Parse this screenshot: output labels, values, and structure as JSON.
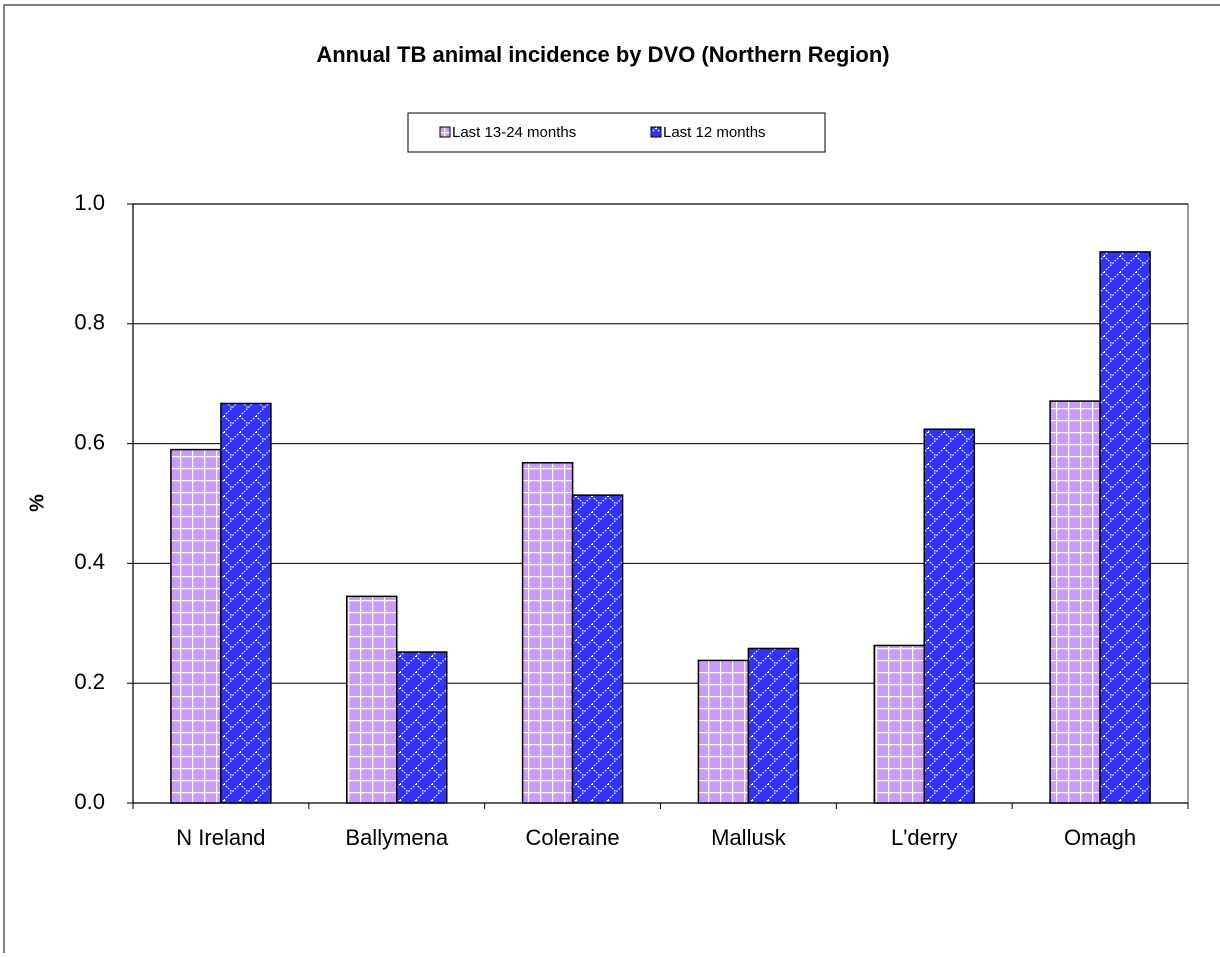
{
  "chart_data": {
    "type": "bar",
    "title": "Annual TB animal incidence by DVO (Northern Region)",
    "y_label": "%",
    "categories": [
      "N Ireland",
      "Ballymena",
      "Coleraine",
      "Mallusk",
      "L'derry",
      "Omagh"
    ],
    "series": [
      {
        "name": "Last 13-24 months",
        "color": "#cc99ff",
        "values": [
          0.59,
          0.345,
          0.568,
          0.238,
          0.263,
          0.671
        ]
      },
      {
        "name": "Last 12 months",
        "color": "#3333ff",
        "values": [
          0.667,
          0.252,
          0.514,
          0.258,
          0.624,
          0.92
        ]
      }
    ],
    "ylim": [
      0,
      1
    ],
    "yticks": [
      {
        "value": 0,
        "label": "0.0"
      },
      0.2,
      0.4,
      0.6,
      0.8,
      {
        "value": 1,
        "label": "1.0"
      }
    ],
    "grid": true,
    "legend": "top"
  }
}
